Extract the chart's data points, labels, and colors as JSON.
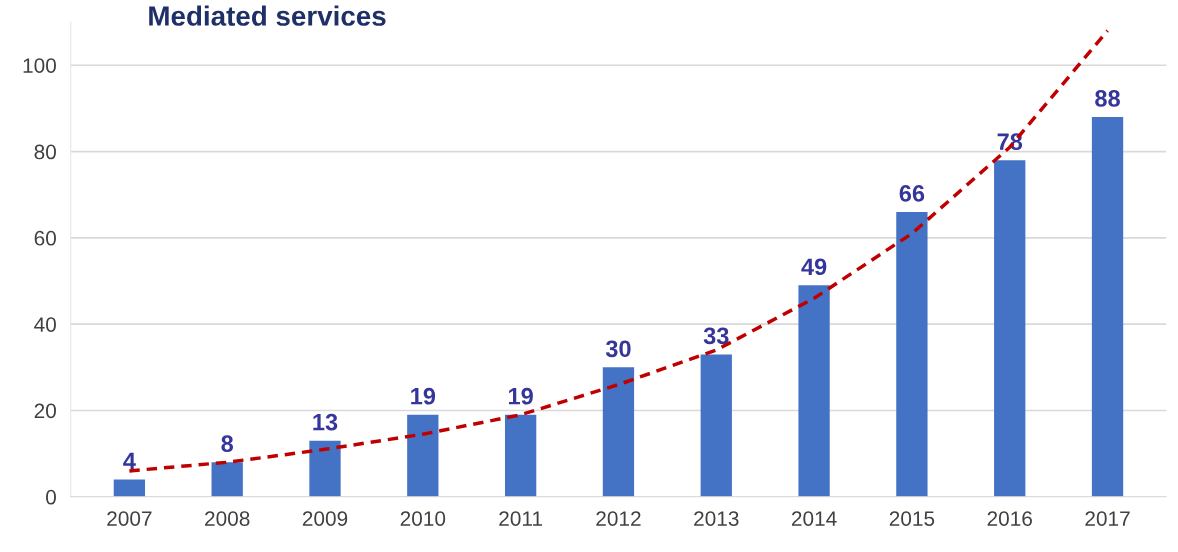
{
  "chart_data": {
    "type": "bar",
    "title": "Mediated services",
    "categories": [
      "2007",
      "2008",
      "2009",
      "2010",
      "2011",
      "2012",
      "2013",
      "2014",
      "2015",
      "2016",
      "2017"
    ],
    "series": [
      {
        "color": "#4472c4",
        "values": [
          4,
          8,
          13,
          19,
          19,
          30,
          33,
          49,
          66,
          78,
          88
        ],
        "value_labels": [
          "4",
          "8",
          "13",
          "19",
          "19",
          "30",
          "33",
          "49",
          "66",
          "78",
          "88"
        ]
      },
      {
        "type": "line",
        "color": "#c00000",
        "line_style": "dashed",
        "values": [
          6,
          8,
          11,
          14.5,
          19,
          26,
          34,
          46,
          61,
          81,
          108
        ]
      }
    ],
    "ylim": [
      0,
      110
    ],
    "yticks": [
      0,
      20,
      40,
      60,
      80,
      100
    ],
    "grid": "y",
    "legend": false
  }
}
